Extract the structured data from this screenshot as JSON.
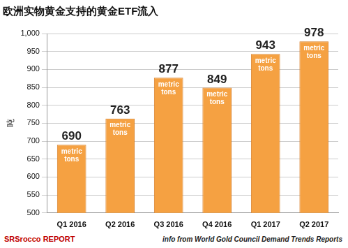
{
  "chart_data": {
    "type": "bar",
    "title": "欧洲实物黄金支持的黄金ETF流入",
    "y_label": "吨",
    "categories": [
      "Q1 2016",
      "Q2 2016",
      "Q3 2016",
      "Q4 2016",
      "Q1 2017",
      "Q2 2017"
    ],
    "values": [
      690,
      763,
      877,
      849,
      943,
      978
    ],
    "value_labels": [
      "690 metric tons",
      "763 metric tons",
      "877 metric tons",
      "849 metric tons",
      "943 metric tons",
      "978 metric tons"
    ],
    "data_labels": true,
    "color": "#f5a142",
    "ylim": [
      500,
      1000
    ],
    "yticks": [
      500,
      550,
      600,
      650,
      700,
      750,
      800,
      850,
      900,
      950,
      1000
    ],
    "grid": true,
    "source": "info from World Gold Council Demand Trends Reports",
    "logo": "SRSrocco REPORT"
  }
}
